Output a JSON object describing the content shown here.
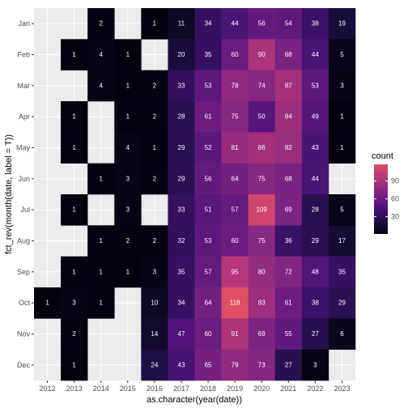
{
  "chart_data": {
    "type": "heatmap",
    "title": "",
    "xlabel": "as.character(year(date))",
    "ylabel": "fct_rev(month(date, label = T))",
    "x_categories": [
      "2012",
      "2013",
      "2014",
      "2015",
      "2016",
      "2017",
      "2018",
      "2019",
      "2020",
      "2021",
      "2022",
      "2023"
    ],
    "y_categories": [
      "Jan",
      "Feb",
      "Mar",
      "Apr",
      "May",
      "Jun",
      "Jul",
      "Aug",
      "Sep",
      "Oct",
      "Nov",
      "Dec"
    ],
    "values": [
      [
        null,
        null,
        2,
        null,
        1,
        11,
        34,
        44,
        56,
        54,
        38,
        19
      ],
      [
        null,
        1,
        4,
        1,
        null,
        20,
        35,
        60,
        90,
        68,
        44,
        5
      ],
      [
        null,
        null,
        4,
        1,
        2,
        33,
        53,
        78,
        74,
        87,
        53,
        3
      ],
      [
        null,
        1,
        null,
        1,
        2,
        28,
        61,
        75,
        50,
        84,
        49,
        1
      ],
      [
        null,
        1,
        null,
        4,
        1,
        29,
        52,
        81,
        86,
        82,
        43,
        1
      ],
      [
        null,
        null,
        1,
        3,
        2,
        29,
        56,
        64,
        75,
        68,
        44,
        null
      ],
      [
        null,
        1,
        null,
        3,
        null,
        33,
        51,
        57,
        109,
        69,
        28,
        5
      ],
      [
        null,
        null,
        1,
        2,
        2,
        32,
        53,
        60,
        75,
        36,
        29,
        17
      ],
      [
        null,
        1,
        1,
        1,
        3,
        35,
        57,
        95,
        80,
        72,
        48,
        35
      ],
      [
        1,
        3,
        1,
        null,
        10,
        34,
        64,
        118,
        83,
        61,
        38,
        29
      ],
      [
        null,
        2,
        null,
        null,
        14,
        47,
        60,
        91,
        69,
        55,
        27,
        6
      ],
      [
        null,
        1,
        null,
        null,
        24,
        43,
        65,
        79,
        73,
        27,
        3,
        null
      ]
    ],
    "color_scale": "magma",
    "color_range": [
      1,
      118
    ],
    "legend": {
      "title": "count",
      "breaks": [
        30,
        60,
        90
      ],
      "break_labels": [
        "30",
        "60",
        "90"
      ],
      "placement": "right"
    },
    "panel_background": "#ebebeb",
    "grid": true
  }
}
